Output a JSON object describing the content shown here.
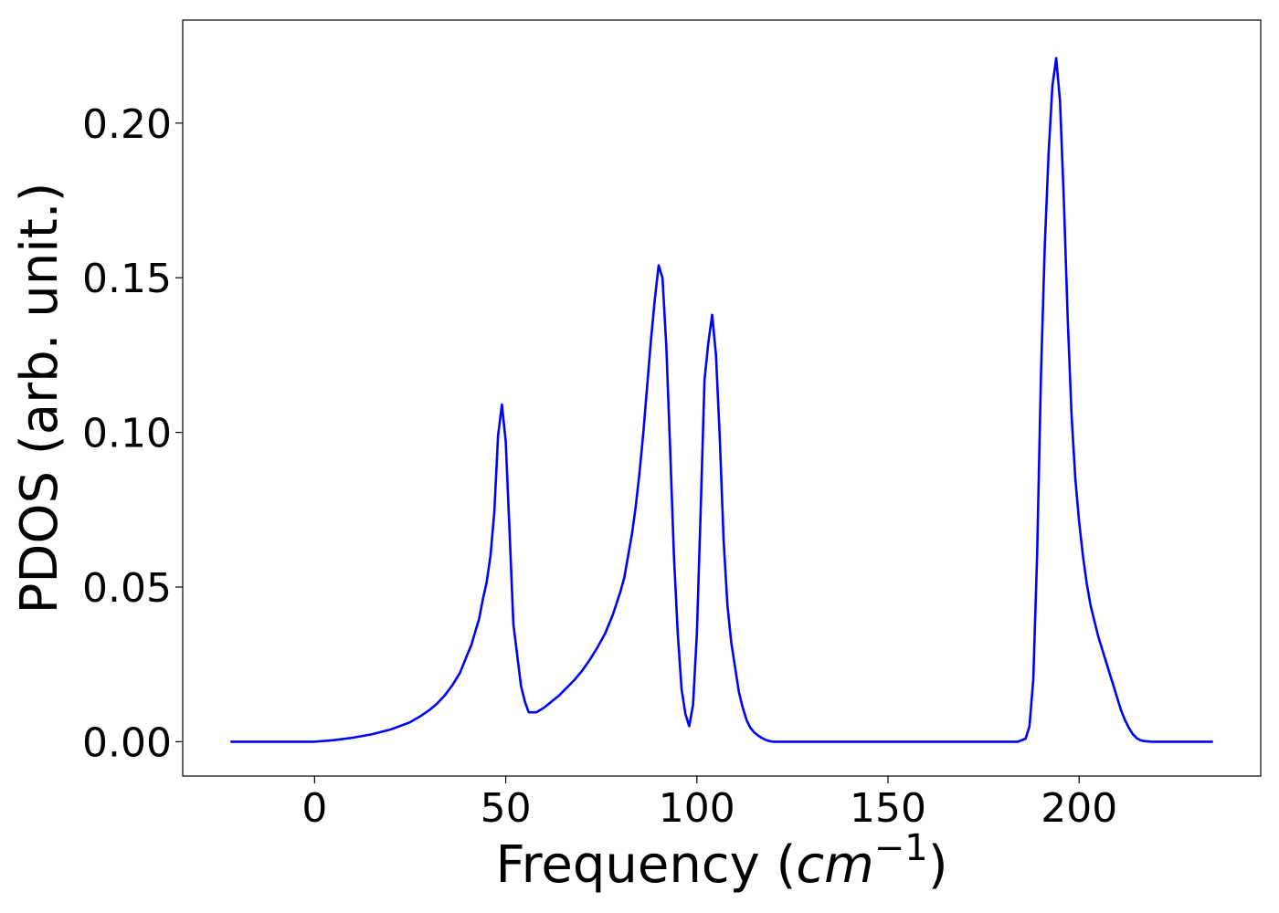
{
  "chart_data": {
    "type": "line",
    "xlabel_prefix": "Frequency (",
    "xlabel_math": "cm",
    "xlabel_sup": "−1",
    "xlabel_suffix": ")",
    "ylabel": "PDOS (arb. unit.)",
    "xlim": [
      -34.5,
      247.5
    ],
    "ylim": [
      -0.0111,
      0.2333
    ],
    "x_ticks": [
      0,
      50,
      100,
      150,
      200
    ],
    "x_tick_labels": [
      "0",
      "50",
      "100",
      "150",
      "200"
    ],
    "y_ticks": [
      0.0,
      0.05,
      0.1,
      0.15,
      0.2
    ],
    "y_tick_labels": [
      "0.00",
      "0.05",
      "0.10",
      "0.15",
      "0.20"
    ],
    "grid": false,
    "series": [
      {
        "color": "#0000ff",
        "x": [
          -22,
          -10,
          0,
          5,
          10,
          15,
          20,
          25,
          28,
          30,
          32,
          34,
          36,
          38,
          40,
          41,
          42,
          43,
          44,
          45,
          46,
          47,
          48,
          49,
          50,
          51,
          52,
          53,
          54,
          55,
          56,
          58,
          60,
          62,
          64,
          66,
          68,
          70,
          72,
          74,
          76,
          78,
          80,
          81,
          82,
          83,
          84,
          85,
          86,
          87,
          88,
          89,
          90,
          91,
          92,
          93,
          94,
          95,
          96,
          97,
          98,
          99,
          100,
          101,
          102,
          103,
          104,
          105,
          106,
          107,
          108,
          109,
          110,
          111,
          112,
          113,
          114,
          115,
          116,
          117,
          118,
          119,
          120,
          130,
          150,
          170,
          180,
          184,
          186,
          187,
          188,
          189,
          190,
          191,
          192,
          193,
          194,
          195,
          196,
          197,
          198,
          199,
          200,
          201,
          202,
          203,
          204,
          205,
          206,
          207,
          208,
          209,
          210,
          211,
          212,
          213,
          214,
          215,
          216,
          217,
          218,
          219,
          220,
          222,
          225,
          235
        ],
        "y": [
          0.0,
          0.0,
          0.0,
          0.0005,
          0.0013,
          0.0024,
          0.004,
          0.0063,
          0.0085,
          0.0102,
          0.0123,
          0.0149,
          0.0182,
          0.0222,
          0.0283,
          0.0312,
          0.0355,
          0.0395,
          0.046,
          0.0515,
          0.06,
          0.074,
          0.099,
          0.109,
          0.097,
          0.068,
          0.038,
          0.028,
          0.018,
          0.013,
          0.0095,
          0.0095,
          0.011,
          0.013,
          0.015,
          0.0175,
          0.02,
          0.023,
          0.0265,
          0.0305,
          0.035,
          0.041,
          0.0485,
          0.053,
          0.06,
          0.067,
          0.076,
          0.087,
          0.1,
          0.115,
          0.13,
          0.143,
          0.154,
          0.15,
          0.128,
          0.095,
          0.06,
          0.035,
          0.017,
          0.009,
          0.005,
          0.012,
          0.035,
          0.075,
          0.117,
          0.129,
          0.138,
          0.125,
          0.098,
          0.065,
          0.044,
          0.032,
          0.024,
          0.016,
          0.011,
          0.007,
          0.0045,
          0.003,
          0.002,
          0.0012,
          0.0006,
          0.0002,
          0.0,
          0.0,
          0.0,
          0.0,
          0.0,
          0.0,
          0.001,
          0.005,
          0.02,
          0.06,
          0.118,
          0.16,
          0.19,
          0.212,
          0.221,
          0.207,
          0.175,
          0.137,
          0.106,
          0.085,
          0.071,
          0.06,
          0.051,
          0.044,
          0.039,
          0.034,
          0.03,
          0.026,
          0.022,
          0.018,
          0.014,
          0.01,
          0.007,
          0.0045,
          0.0025,
          0.0012,
          0.0005,
          0.0002,
          0.0001,
          0.0,
          0.0,
          0.0,
          0.0,
          0.0
        ]
      }
    ]
  }
}
